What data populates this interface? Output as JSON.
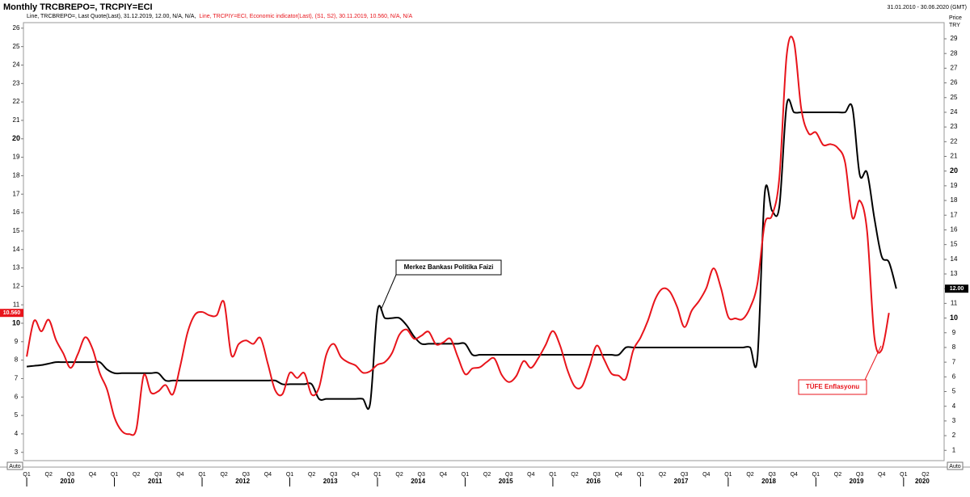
{
  "chart_data": {
    "type": "line",
    "title": "Monthly TRCBREPO=, TRCPIY=ECI",
    "date_range": "31.01.2010 - 30.06.2020 (GMT)",
    "y2label": "Price",
    "y2unit": "TRY",
    "left_axis_mode": "Auto",
    "right_axis_mode": "Auto",
    "categories": [
      "Q1",
      null,
      null,
      "Q2",
      null,
      null,
      "Q3",
      null,
      null,
      "Q4",
      null,
      null,
      "Q1",
      null,
      null,
      "Q2",
      null,
      null,
      "Q3",
      null,
      null,
      "Q4",
      null,
      null,
      "Q1",
      null,
      null,
      "Q2",
      null,
      null,
      "Q3",
      null,
      null,
      "Q4",
      null,
      null,
      "Q1",
      null,
      null,
      "Q2",
      null,
      null,
      "Q3",
      null,
      null,
      "Q4",
      null,
      null,
      "Q1",
      null,
      null,
      "Q2",
      null,
      null,
      "Q3",
      null,
      null,
      "Q4",
      null,
      null,
      "Q1",
      null,
      null,
      "Q2",
      null,
      null,
      "Q3",
      null,
      null,
      "Q4",
      null,
      null,
      "Q1",
      null,
      null,
      "Q2",
      null,
      null,
      "Q3",
      null,
      null,
      "Q4",
      null,
      null,
      "Q1",
      null,
      null,
      "Q2",
      null,
      null,
      "Q3",
      null,
      null,
      "Q4",
      null,
      null,
      "Q1",
      null,
      null,
      "Q2",
      null,
      null,
      "Q3",
      null,
      null,
      "Q4",
      null,
      null,
      "Q1",
      null,
      null,
      "Q2",
      null,
      null,
      "Q3",
      null,
      null,
      "Q4",
      null,
      null,
      "Q1",
      null,
      null,
      "Q2",
      null,
      null
    ],
    "years": [
      "2010",
      "2011",
      "2012",
      "2013",
      "2014",
      "2015",
      "2016",
      "2017",
      "2018",
      "2019",
      "2020"
    ],
    "series": [
      {
        "name": "Line, TRCBREPO=, Last Quote(Last), 31.12.2019, 12.00, N/A, N/A,",
        "color": "#000000",
        "axis": "y2",
        "last_value_label": "12.00",
        "values": [
          6.7,
          6.75,
          6.8,
          6.9,
          7,
          7,
          7,
          7,
          7,
          7,
          7,
          6.5,
          6.25,
          6.25,
          6.25,
          6.25,
          6.25,
          6.25,
          6.25,
          5.75,
          5.75,
          5.75,
          5.75,
          5.75,
          5.75,
          5.75,
          5.75,
          5.75,
          5.75,
          5.75,
          5.75,
          5.75,
          5.75,
          5.75,
          5.75,
          5.5,
          5.5,
          5.5,
          5.5,
          5.5,
          4.5,
          4.5,
          4.5,
          4.5,
          4.5,
          4.5,
          4.5,
          4.2,
          10.5,
          10,
          10,
          10,
          9.5,
          8.75,
          8.25,
          8.25,
          8.25,
          8.25,
          8.25,
          8.25,
          8.25,
          7.5,
          7.5,
          7.5,
          7.5,
          7.5,
          7.5,
          7.5,
          7.5,
          7.5,
          7.5,
          7.5,
          7.5,
          7.5,
          7.5,
          7.5,
          7.5,
          7.5,
          7.5,
          7.5,
          7.5,
          7.5,
          8,
          8,
          8,
          8,
          8,
          8,
          8,
          8,
          8,
          8,
          8,
          8,
          8,
          8,
          8,
          8,
          8,
          8,
          7.3,
          18.5,
          17.3,
          17.6,
          24.5,
          24,
          24,
          24,
          24,
          24,
          24,
          24,
          24,
          24.3,
          19.75,
          19.9,
          16.8,
          14.2,
          13.8,
          12,
          null,
          null,
          null,
          null,
          null,
          null
        ]
      },
      {
        "name": "Line, TRCPIY=ECI, Economic indicator(Last), (S1, S2), 30.11.2019, 10.560, N/A, N/A",
        "color": "#e8141b",
        "last_value_label": "10.560",
        "values": [
          8.19,
          10.13,
          9.56,
          10.19,
          9.1,
          8.37,
          7.58,
          8.33,
          9.24,
          8.62,
          7.29,
          6.4,
          4.9,
          4.16,
          3.99,
          4.26,
          7.17,
          6.24,
          6.31,
          6.65,
          6.15,
          7.66,
          9.48,
          10.45,
          10.61,
          10.43,
          10.43,
          11.14,
          8.28,
          8.87,
          9.07,
          8.88,
          9.19,
          7.8,
          6.37,
          6.16,
          7.31,
          7.03,
          7.29,
          6.13,
          6.51,
          8.3,
          8.88,
          8.17,
          7.88,
          7.71,
          7.32,
          7.4,
          7.75,
          7.89,
          8.39,
          9.38,
          9.66,
          9.16,
          9.32,
          9.54,
          8.86,
          8.96,
          9.15,
          8.17,
          7.24,
          7.55,
          7.61,
          7.91,
          8.09,
          7.2,
          6.81,
          7.14,
          7.95,
          7.58,
          8.1,
          8.81,
          9.58,
          8.78,
          7.46,
          6.57,
          6.58,
          7.64,
          8.79,
          8.05,
          7.28,
          7.16,
          7.0,
          8.53,
          9.22,
          10.13,
          11.29,
          11.87,
          11.72,
          10.9,
          9.79,
          10.68,
          11.2,
          11.9,
          12.98,
          11.92,
          10.35,
          10.26,
          10.23,
          10.85,
          12.15,
          15.39,
          15.85,
          17.9,
          24.52,
          25.24,
          21.62,
          20.3,
          20.35,
          19.67,
          19.71,
          19.5,
          18.71,
          15.72,
          16.65,
          15.01,
          9.26,
          8.55,
          10.56,
          null,
          null,
          null,
          null,
          null,
          null,
          null
        ]
      }
    ],
    "ylim": [
      2.55,
      26.3
    ],
    "yticks": [
      3,
      4,
      5,
      6,
      7,
      8,
      9,
      10,
      11,
      12,
      13,
      14,
      15,
      16,
      17,
      18,
      19,
      20,
      21,
      22,
      23,
      24,
      25,
      26
    ],
    "y2lim": [
      0.3,
      30.1
    ],
    "y2ticks": [
      1,
      2,
      3,
      4,
      5,
      6,
      7,
      8,
      9,
      10,
      11,
      12,
      13,
      14,
      15,
      16,
      17,
      18,
      19,
      20,
      21,
      22,
      23,
      24,
      25,
      26,
      27,
      28,
      29
    ],
    "grid": false,
    "annotations": [
      "Merkez Bankası Politika Faizi",
      "TÜFE Enflasyonu"
    ]
  }
}
